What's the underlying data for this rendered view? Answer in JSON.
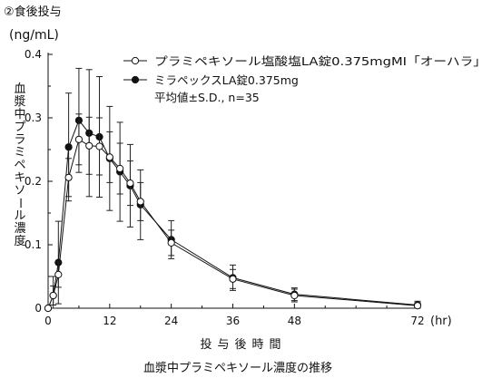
{
  "chart_data": {
    "type": "line",
    "title": "②食後投与",
    "unit": "(ng/mL)",
    "ylabel": "血漿中プラミペキソール濃度",
    "xlabel": "投与後時間",
    "xunit": "(hr)",
    "caption": "血漿中プラミペキソール濃度の推移",
    "xlim": [
      0,
      72
    ],
    "ylim": [
      0,
      0.4
    ],
    "x_ticks": [
      0,
      12,
      24,
      36,
      48,
      72
    ],
    "y_ticks": [
      0,
      0.1,
      0.2,
      0.3,
      0.4
    ],
    "x_tick_labels": [
      "0",
      "12",
      "24",
      "36",
      "48",
      "72"
    ],
    "y_tick_labels": [
      "0",
      "0.1",
      "0.2",
      "0.3",
      "0.4"
    ],
    "legend_position": "top-right",
    "stats_note": "平均値±S.D., n=35",
    "series": [
      {
        "name": "プラミペキソール塩酸塩LA錠0.375mgMI「オーハラ」",
        "marker": "open-circle",
        "x": [
          0,
          1,
          2,
          4,
          6,
          8,
          10,
          12,
          14,
          16,
          18,
          24,
          36,
          48,
          72
        ],
        "y": [
          0.0,
          0.02,
          0.053,
          0.206,
          0.266,
          0.256,
          0.255,
          0.238,
          0.22,
          0.197,
          0.168,
          0.103,
          0.046,
          0.02,
          0.004
        ],
        "sd": [
          0,
          0.015,
          0.02,
          0.03,
          0.04,
          0.045,
          0.045,
          0.04,
          0.04,
          0.035,
          0.03,
          0.02,
          0.015,
          0.01,
          0.005
        ]
      },
      {
        "name": "ミラペックスLA錠0.375mg",
        "marker": "filled-circle",
        "x": [
          0,
          1,
          2,
          4,
          6,
          8,
          10,
          12,
          14,
          16,
          18,
          24,
          36,
          48,
          72
        ],
        "y": [
          0.0,
          0.02,
          0.072,
          0.254,
          0.296,
          0.276,
          0.27,
          0.236,
          0.215,
          0.193,
          0.163,
          0.108,
          0.048,
          0.022,
          0.005
        ],
        "sd": [
          0,
          0.03,
          0.065,
          0.085,
          0.082,
          0.1,
          0.095,
          0.082,
          0.078,
          0.065,
          0.055,
          0.03,
          0.02,
          0.01,
          0.006
        ]
      }
    ]
  }
}
